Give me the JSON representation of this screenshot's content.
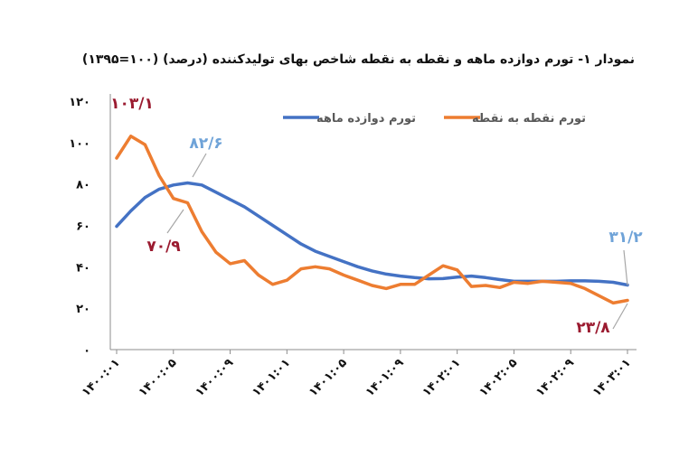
{
  "chart_data": {
    "type": "line",
    "title": "نمودار ۱- تورم دوازده ماهه و نقطه به نقطه شاخص بهای تولیدکننده (درصد) (۱۰۰=۱۳۹۵)",
    "xlabel": "",
    "ylabel": "",
    "ylim": [
      0,
      120
    ],
    "y_ticks": [
      "۰",
      "۲۰",
      "۴۰",
      "۶۰",
      "۸۰",
      "۱۰۰",
      "۱۲۰"
    ],
    "x_tick_labels": [
      "۱۴۰۰:۰۱",
      "۱۴۰۰:۰۵",
      "۱۴۰۰:۰۹",
      "۱۴۰۱:۰۱",
      "۱۴۰۱:۰۵",
      "۱۴۰۱:۰۹",
      "۱۴۰۲:۰۱",
      "۱۴۰۲:۰۵",
      "۱۴۰۲:۰۹",
      "۱۴۰۳:۰۱"
    ],
    "grid": false,
    "legend_position": "top",
    "series": [
      {
        "name": "تورم دوازده ماهه",
        "color": "#4472C4",
        "values": [
          59.5,
          67,
          73.5,
          77.5,
          79.5,
          80.5,
          79.5,
          76,
          72.5,
          69,
          64.5,
          60,
          55.5,
          51,
          47.5,
          45,
          42.5,
          40,
          38,
          36.5,
          35.5,
          34.8,
          34.2,
          34.3,
          35,
          35.5,
          34.8,
          33.8,
          33,
          33,
          33,
          33,
          33.2,
          33.2,
          33,
          32.5,
          31.2
        ]
      },
      {
        "name": "تورم نقطه به نقطه",
        "color": "#ED7D31",
        "values": [
          92.5,
          103.1,
          99,
          84,
          73,
          70.9,
          57,
          47,
          41.5,
          43,
          36,
          31.5,
          33.5,
          39,
          40,
          39,
          36,
          33.5,
          31,
          29.5,
          31.5,
          31.5,
          36,
          40.5,
          38.5,
          30.5,
          31,
          30,
          32.5,
          32,
          33,
          32.5,
          32,
          29.5,
          26,
          22.5,
          23.8
        ]
      }
    ],
    "annotations": [
      "۱۰۳/۱",
      "۸۲/۶",
      "۷۰/۹",
      "۳۱/۲",
      "۲۳/۸"
    ],
    "colors": {
      "annotation_dark_red": "#9B1B30",
      "annotation_blue": "#6FA3D8",
      "leader": "#A6A6A6",
      "axis": "#8C8C8C"
    }
  }
}
